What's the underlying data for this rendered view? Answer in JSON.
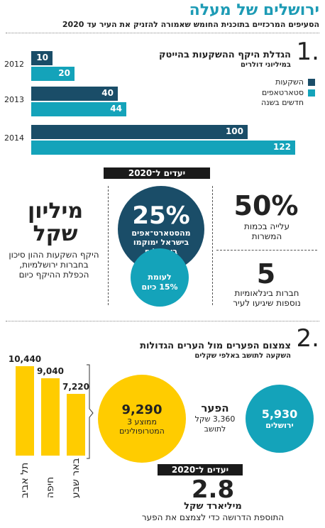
{
  "header": {
    "title": "ירושלים של מעלה",
    "subtitle": "הסעיפים המרכזיים בתוכנית החומש שאמורה להזניק את העיר עד 2020"
  },
  "section1": {
    "number": "1.",
    "heading": "הגדלת היקף ההשקעות בהייטק",
    "subheading": "במיליוני דולרים",
    "legend": [
      "השקעות",
      "סטארטאפים",
      "חדשים בשנה"
    ],
    "colors": {
      "investments": "#1a4d68",
      "startups": "#14a3ba"
    }
  },
  "chart_data": {
    "type": "bar",
    "categories": [
      "2012",
      "2013",
      "2014"
    ],
    "series": [
      {
        "name": "השקעות",
        "values": [
          10,
          40,
          100
        ]
      },
      {
        "name": "סטארטאפים חדשים בשנה",
        "values": [
          20,
          44,
          122
        ]
      }
    ],
    "title": "הגדלת היקף ההשקעות בהייטק",
    "subtitle": "במיליוני דולרים"
  },
  "goals1": {
    "label": "יעדים ל־2020",
    "left_big": "מיליון שקל",
    "left_desc": "היקף השקעות ההון סיכון בחברות ירושלמיות, הכפלת ההיקף כיום",
    "center_pct": "25%",
    "center_desc": "מהסטארט־אפים בישראל ימוקמו בירושלים",
    "small_circle": "לעומת 15% כיום",
    "right_top_big": "50%",
    "right_top_desc": "עלייה בכמות המשרות",
    "right_bottom_big": "5",
    "right_bottom_desc": "חברות בינלאומיות נוספות שיגיעו לעיר"
  },
  "section2": {
    "number": "2.",
    "heading": "צמצום הפערים מול הערים הגדולות",
    "subheading": "השקעה לתושב באלפי שקלים",
    "cities": [
      {
        "name": "תל אביב",
        "value": "10,440",
        "num": 10440
      },
      {
        "name": "חיפה",
        "value": "9,040",
        "num": 9040
      },
      {
        "name": "באר שבע",
        "value": "7,220",
        "num": 7220
      }
    ],
    "metro_value": "9,290",
    "metro_desc": "ממוצע 3 המטרופולינים",
    "gap_title": "הפער",
    "gap_desc": "3,360 שקל לתושב",
    "jerusalem_value": "5,930",
    "jerusalem_name": "ירושלים",
    "colors": {
      "yellow": "#ffcc00",
      "teal": "#14a3ba"
    }
  },
  "goals2": {
    "label": "יעדים ל־2020",
    "big": "2.8",
    "big_label": "מיליארד שקל",
    "desc": "התוספת הדרושה כדי לצמצם את הפער"
  }
}
